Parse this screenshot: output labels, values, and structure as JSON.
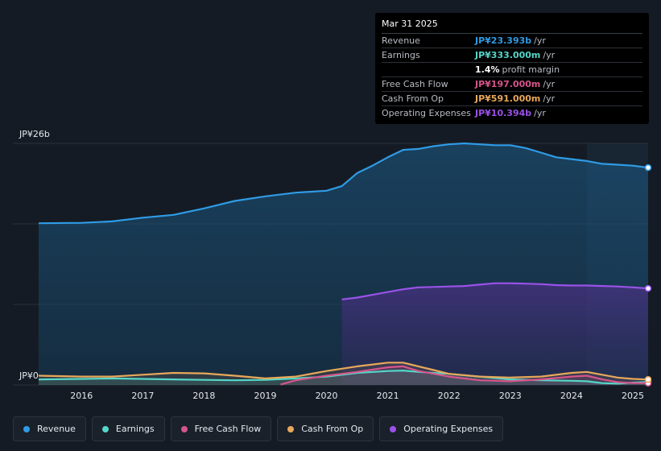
{
  "tooltip": {
    "date": "Mar 31 2025",
    "rows": [
      {
        "label": "Revenue",
        "value": "JP¥23.393b",
        "unit": "/yr",
        "color": "#2f9be5"
      },
      {
        "label": "Earnings",
        "value": "JP¥333.000m",
        "unit": "/yr",
        "color": "#55d6c8"
      },
      {
        "label": "",
        "value": "1.4%",
        "unit": "profit margin",
        "color": "#ffffff"
      },
      {
        "label": "Free Cash Flow",
        "value": "JP¥197.000m",
        "unit": "/yr",
        "color": "#d6558a"
      },
      {
        "label": "Cash From Op",
        "value": "JP¥591.000m",
        "unit": "/yr",
        "color": "#e8a85a"
      },
      {
        "label": "Operating Expenses",
        "value": "JP¥10.394b",
        "unit": "/yr",
        "color": "#9a52e8"
      }
    ]
  },
  "legend": [
    {
      "label": "Revenue",
      "color": "#2f9be5"
    },
    {
      "label": "Earnings",
      "color": "#55d6c8"
    },
    {
      "label": "Free Cash Flow",
      "color": "#d6558a"
    },
    {
      "label": "Cash From Op",
      "color": "#e8a85a"
    },
    {
      "label": "Operating Expenses",
      "color": "#9a52e8"
    }
  ],
  "chart_data": {
    "type": "area",
    "title": "",
    "y_axis_labels": {
      "top": "JP¥26b",
      "bottom": "JP¥0"
    },
    "ylim": [
      0,
      26
    ],
    "xlim": [
      2015.3,
      2025.25
    ],
    "x_ticks": [
      "2016",
      "2017",
      "2018",
      "2019",
      "2020",
      "2021",
      "2022",
      "2023",
      "2024",
      "2025"
    ],
    "forecast_start": 2024.25,
    "series": [
      {
        "name": "Revenue",
        "color": "#2f9be5",
        "x": [
          2015.3,
          2016.0,
          2016.5,
          2017.0,
          2017.5,
          2018.0,
          2018.5,
          2019.0,
          2019.5,
          2020.0,
          2020.25,
          2020.5,
          2020.75,
          2021.0,
          2021.25,
          2021.5,
          2021.75,
          2022.0,
          2022.25,
          2022.5,
          2022.75,
          2023.0,
          2023.25,
          2023.5,
          2023.75,
          2024.0,
          2024.25,
          2024.5,
          2024.75,
          2025.0,
          2025.25
        ],
        "values": [
          17.4,
          17.45,
          17.6,
          18.0,
          18.3,
          19.0,
          19.8,
          20.3,
          20.7,
          20.9,
          21.4,
          22.8,
          23.6,
          24.5,
          25.3,
          25.4,
          25.7,
          25.9,
          26.0,
          25.9,
          25.8,
          25.8,
          25.5,
          25.0,
          24.5,
          24.3,
          24.1,
          23.8,
          23.7,
          23.6,
          23.39
        ]
      },
      {
        "name": "Operating Expenses",
        "color": "#9a52e8",
        "x": [
          2020.25,
          2020.5,
          2020.75,
          2021.0,
          2021.25,
          2021.5,
          2021.75,
          2022.0,
          2022.25,
          2022.5,
          2022.75,
          2023.0,
          2023.25,
          2023.5,
          2023.75,
          2024.0,
          2024.25,
          2024.5,
          2024.75,
          2025.0,
          2025.25
        ],
        "values": [
          9.2,
          9.4,
          9.7,
          10.0,
          10.3,
          10.5,
          10.55,
          10.6,
          10.65,
          10.8,
          10.95,
          10.95,
          10.9,
          10.85,
          10.75,
          10.7,
          10.7,
          10.65,
          10.6,
          10.5,
          10.39
        ]
      },
      {
        "name": "Cash From Op",
        "color": "#e8a85a",
        "x": [
          2015.3,
          2016.0,
          2016.5,
          2017.0,
          2017.5,
          2018.0,
          2018.5,
          2019.0,
          2019.5,
          2020.0,
          2020.5,
          2021.0,
          2021.25,
          2021.5,
          2021.75,
          2022.0,
          2022.5,
          2023.0,
          2023.5,
          2024.0,
          2024.25,
          2024.5,
          2024.75,
          2025.0,
          2025.25
        ],
        "values": [
          1.0,
          0.9,
          0.9,
          1.1,
          1.3,
          1.25,
          1.0,
          0.7,
          0.9,
          1.5,
          2.0,
          2.4,
          2.4,
          2.0,
          1.6,
          1.2,
          0.9,
          0.8,
          0.9,
          1.3,
          1.4,
          1.1,
          0.8,
          0.65,
          0.59
        ]
      },
      {
        "name": "Free Cash Flow",
        "color": "#d6558a",
        "x": [
          2019.25,
          2019.5,
          2020.0,
          2020.5,
          2021.0,
          2021.25,
          2021.5,
          2022.0,
          2022.5,
          2023.0,
          2023.5,
          2024.0,
          2024.25,
          2024.5,
          2024.75,
          2025.0,
          2025.25
        ],
        "values": [
          0.05,
          0.5,
          1.0,
          1.4,
          1.9,
          2.0,
          1.5,
          0.9,
          0.5,
          0.4,
          0.6,
          0.9,
          1.0,
          0.6,
          0.3,
          0.2,
          0.197
        ]
      },
      {
        "name": "Earnings",
        "color": "#55d6c8",
        "x": [
          2015.3,
          2016.0,
          2016.5,
          2017.0,
          2017.5,
          2018.0,
          2018.5,
          2019.0,
          2019.5,
          2020.0,
          2020.5,
          2021.0,
          2021.25,
          2021.5,
          2022.0,
          2022.5,
          2023.0,
          2023.5,
          2024.0,
          2024.25,
          2024.5,
          2024.75,
          2025.0,
          2025.25
        ],
        "values": [
          0.6,
          0.65,
          0.7,
          0.65,
          0.6,
          0.55,
          0.5,
          0.55,
          0.7,
          0.9,
          1.3,
          1.5,
          1.55,
          1.4,
          1.2,
          0.9,
          0.6,
          0.5,
          0.45,
          0.4,
          0.2,
          0.15,
          0.25,
          0.333
        ]
      }
    ]
  }
}
